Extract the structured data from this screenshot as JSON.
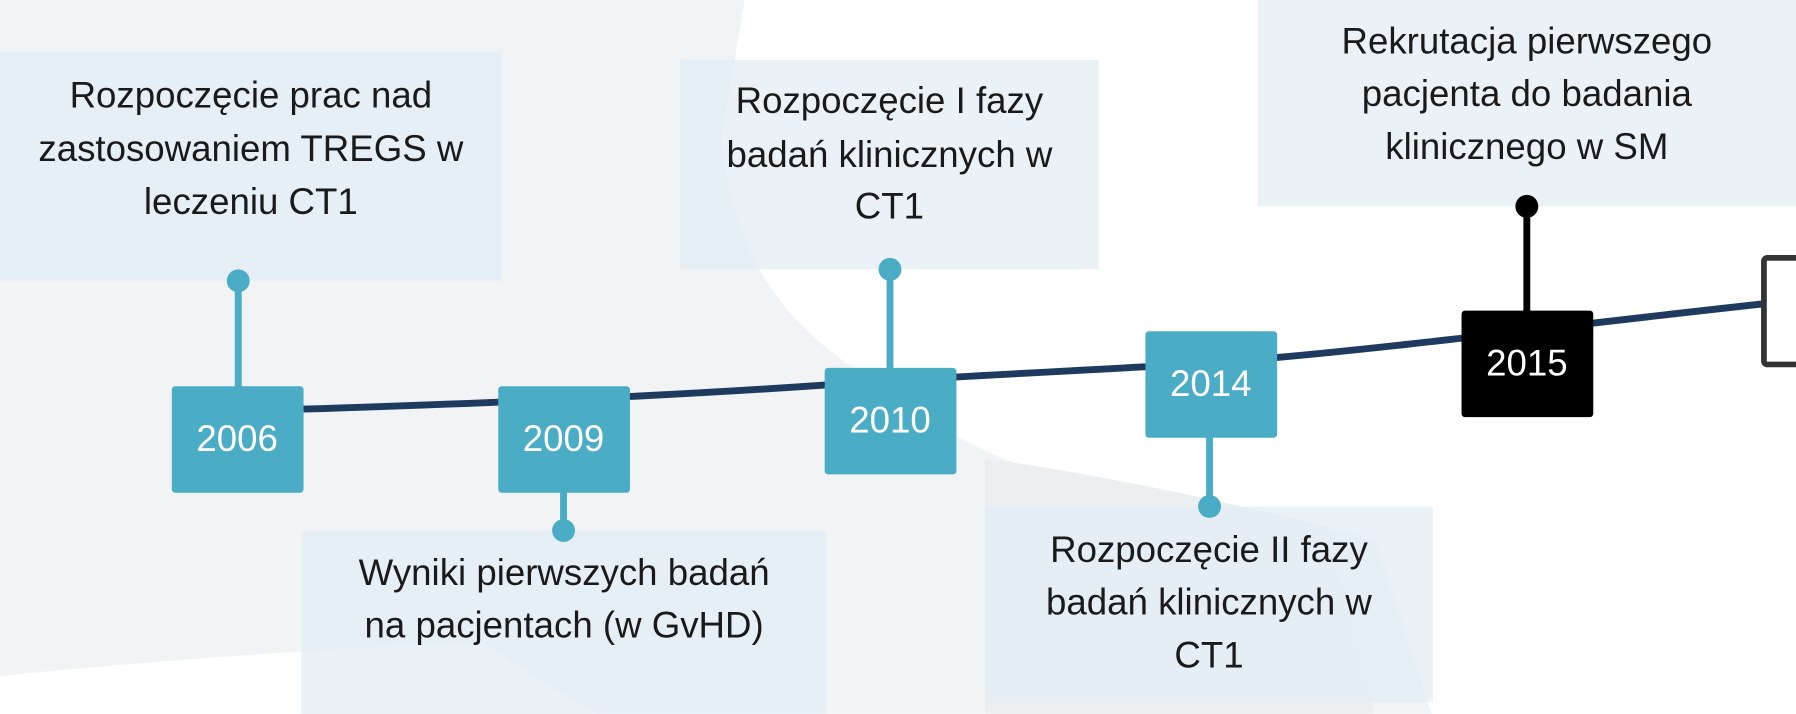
{
  "timeline": {
    "events": [
      {
        "year": "2006",
        "label": [
          "Rozpoczęcie prac nad",
          "zastosowaniem TREGS w",
          "leczeniu CT1"
        ]
      },
      {
        "year": "2009",
        "label": [
          "Wyniki pierwszych badań",
          "na pacjentach (w GvHD)"
        ]
      },
      {
        "year": "2010",
        "label": [
          "Rozpoczęcie I fazy",
          "badań klinicznych w",
          "CT1"
        ]
      },
      {
        "year": "2014",
        "label": [
          "Rozpoczęcie II fazy",
          "badań klinicznych w",
          "CT1"
        ]
      },
      {
        "year": "2015",
        "label": [
          "Rekrutacja pierwszego",
          "pacjenta do badania",
          "klinicznego w SM"
        ]
      }
    ]
  }
}
